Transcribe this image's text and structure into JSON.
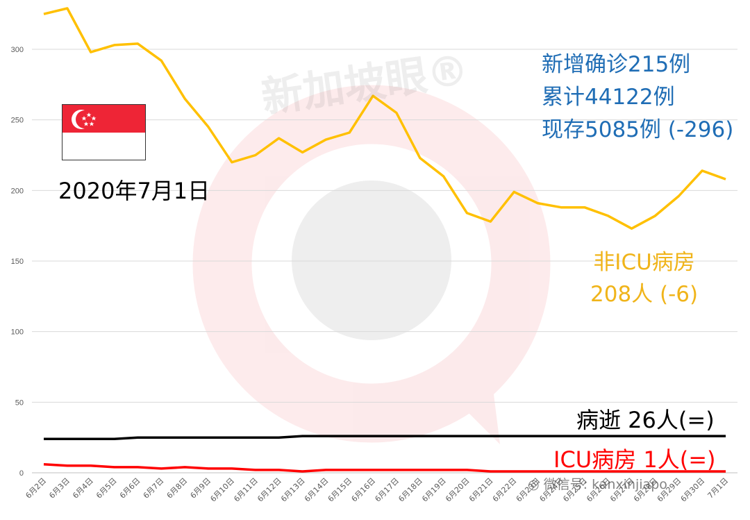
{
  "chart_data": {
    "type": "line",
    "categories": [
      "6月2日",
      "6月3日",
      "6月4日",
      "6月5日",
      "6月6日",
      "6月7日",
      "6月8日",
      "6月9日",
      "6月10日",
      "6月11日",
      "6月12日",
      "6月13日",
      "6月14日",
      "6月15日",
      "6月16日",
      "6月17日",
      "6月18日",
      "6月19日",
      "6月20日",
      "6月21日",
      "6月22日",
      "6月23日",
      "6月24日",
      "6月25日",
      "6月26日",
      "6月27日",
      "6月28日",
      "6月29日",
      "6月30日",
      "7月1日"
    ],
    "ylim": [
      0,
      330
    ],
    "yticks": [
      0,
      50,
      100,
      150,
      200,
      250,
      300
    ],
    "grid": true,
    "series": [
      {
        "key": "nonicu",
        "color": "#ffc000",
        "values": [
          325,
          329,
          298,
          303,
          304,
          292,
          265,
          245,
          220,
          225,
          237,
          227,
          236,
          241,
          267,
          255,
          223,
          210,
          184,
          178,
          199,
          191,
          188,
          188,
          182,
          173,
          182,
          196,
          214,
          208
        ]
      },
      {
        "key": "death",
        "color": "#000000",
        "values": [
          24,
          24,
          24,
          24,
          25,
          25,
          25,
          25,
          25,
          25,
          25,
          26,
          26,
          26,
          26,
          26,
          26,
          26,
          26,
          26,
          26,
          26,
          26,
          26,
          26,
          26,
          26,
          26,
          26,
          26
        ]
      },
      {
        "key": "icu",
        "color": "#ff0000",
        "values": [
          6,
          5,
          5,
          4,
          4,
          3,
          4,
          3,
          3,
          2,
          2,
          1,
          2,
          2,
          2,
          2,
          2,
          2,
          2,
          1,
          1,
          1,
          1,
          1,
          1,
          1,
          1,
          1,
          1,
          1
        ]
      }
    ]
  },
  "annotations": {
    "stats": [
      "新增确诊215例",
      "累计44122例",
      "现存5085例 (-296)"
    ],
    "date": "2020年7月1日",
    "nonicu": [
      "非ICU病房",
      "208人 (-6)"
    ],
    "death": "病逝 26人(=)",
    "icu": "ICU病房 1人(=)"
  },
  "watermark": {
    "text": "新加坡眼®",
    "wechat": "微信号: kanxinjiapo"
  },
  "flag": {
    "country": "Singapore",
    "top_color": "#ee2536",
    "bottom_color": "#ffffff"
  }
}
